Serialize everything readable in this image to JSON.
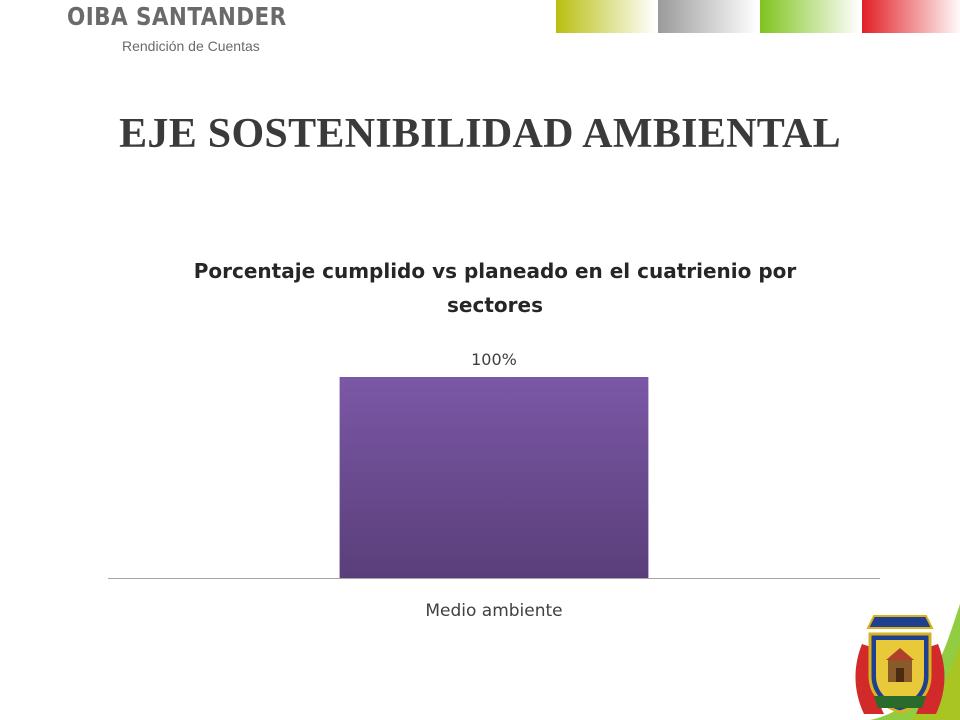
{
  "header": {
    "brand_name": "OIBA SANTANDER",
    "brand_subtitle": "Rendición de Cuentas",
    "color_bars": [
      "#b8bf10",
      "#9a9a9a",
      "#7fc31e",
      "#e21f26"
    ]
  },
  "slide": {
    "title": "EJE SOSTENIBILIDAD AMBIENTAL"
  },
  "chart_data": {
    "type": "bar",
    "title": "Porcentaje cumplido vs planeado en el cuatrienio por sectores",
    "categories": [
      "Medio ambiente"
    ],
    "values": [
      100
    ],
    "data_labels": [
      "100%"
    ],
    "ylim": [
      0,
      100
    ],
    "grid": false,
    "legend": "none",
    "bar_color": "#7b58a6"
  },
  "emblem": {
    "icon": "coat-of-arms-icon"
  }
}
